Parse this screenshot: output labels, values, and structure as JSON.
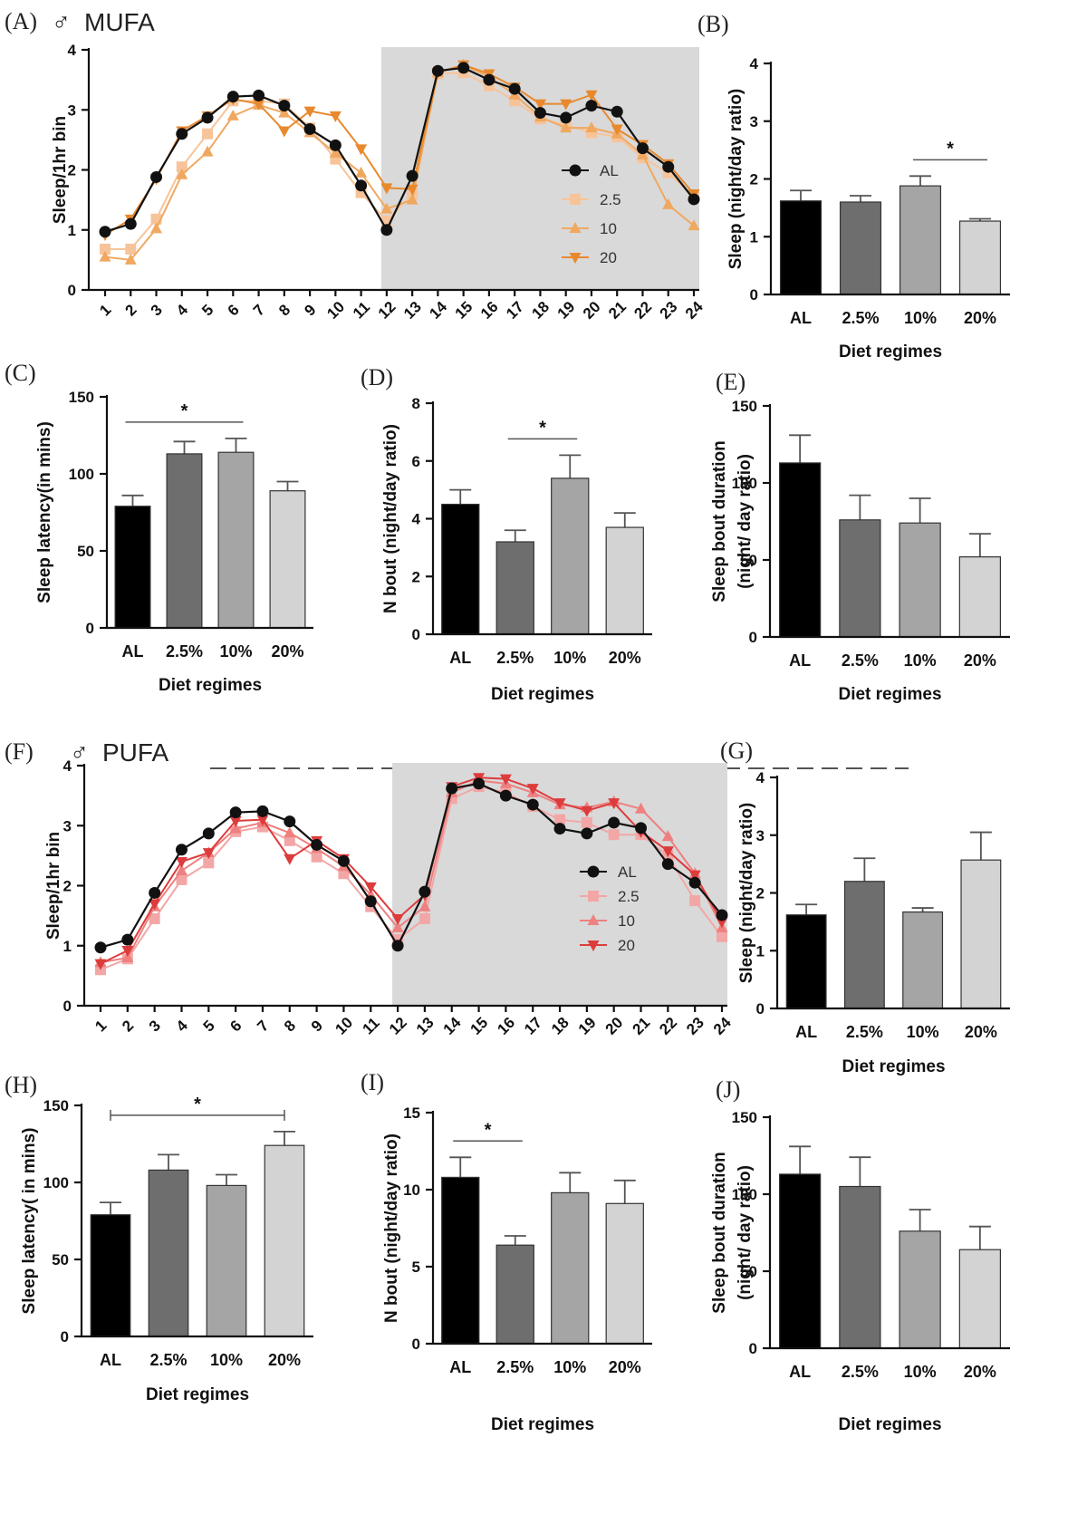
{
  "chart_data": [
    {
      "id": "A",
      "panel_label": "(A)",
      "sex_symbol": "♂",
      "title": "MUFA",
      "type": "line",
      "x": [
        1,
        2,
        3,
        4,
        5,
        6,
        7,
        8,
        9,
        10,
        11,
        12,
        13,
        14,
        15,
        16,
        17,
        18,
        19,
        20,
        21,
        22,
        23,
        24
      ],
      "ylabel": "Sleep/1hr bin",
      "xlabel": "",
      "ylim": [
        0,
        4
      ],
      "yticks": [
        0,
        1,
        2,
        3,
        4
      ],
      "shaded_x_range": [
        12,
        24
      ],
      "series": [
        {
          "name": "AL",
          "color": "#111111",
          "marker": "circle",
          "values": [
            0.97,
            1.1,
            1.88,
            2.6,
            2.87,
            3.22,
            3.24,
            3.07,
            2.68,
            2.41,
            1.74,
            1.0,
            1.9,
            3.65,
            3.7,
            3.5,
            3.35,
            2.95,
            2.87,
            3.07,
            2.97,
            2.36,
            2.05,
            1.51
          ]
        },
        {
          "name": "2.5",
          "color": "#f7c49a",
          "marker": "square",
          "values": [
            0.68,
            0.68,
            1.18,
            2.05,
            2.6,
            3.15,
            3.15,
            3.1,
            2.7,
            2.18,
            1.62,
            1.15,
            1.6,
            3.6,
            3.62,
            3.4,
            3.15,
            2.85,
            2.75,
            2.62,
            2.55,
            2.2,
            1.95,
            1.55
          ]
        },
        {
          "name": "10",
          "color": "#f0a860",
          "marker": "triangle-up",
          "values": [
            0.55,
            0.5,
            1.02,
            1.92,
            2.3,
            2.9,
            3.08,
            2.95,
            2.62,
            2.28,
            1.95,
            1.35,
            1.5,
            3.62,
            3.75,
            3.55,
            3.25,
            2.88,
            2.7,
            2.7,
            2.6,
            2.25,
            1.42,
            1.07
          ]
        },
        {
          "name": "20",
          "color": "#e8892e",
          "marker": "triangle-down",
          "values": [
            0.92,
            1.18,
            1.85,
            2.65,
            2.9,
            3.18,
            3.1,
            2.65,
            2.98,
            2.9,
            2.35,
            1.7,
            1.68,
            3.62,
            3.75,
            3.6,
            3.38,
            3.1,
            3.1,
            3.25,
            2.68,
            2.42,
            2.1,
            1.6
          ]
        }
      ],
      "legend_position": "right-center"
    },
    {
      "id": "B",
      "panel_label": "(B)",
      "type": "bar",
      "categories": [
        "AL",
        "2.5%",
        "10%",
        "20%"
      ],
      "values": [
        1.62,
        1.6,
        1.88,
        1.27
      ],
      "errors": [
        0.18,
        0.11,
        0.17,
        0.04
      ],
      "colors": [
        "#000000",
        "#6e6e6e",
        "#a5a5a5",
        "#d3d3d3"
      ],
      "ylabel": "Sleep (night/day ratio)",
      "xlabel": "Diet regimes",
      "ylim": [
        0,
        4
      ],
      "yticks": [
        0,
        1,
        2,
        3,
        4
      ],
      "significance": [
        {
          "from": 2,
          "to": 3,
          "label": "*"
        }
      ]
    },
    {
      "id": "C",
      "panel_label": "(C)",
      "type": "bar",
      "categories": [
        "AL",
        "2.5%",
        "10%",
        "20%"
      ],
      "values": [
        79,
        113,
        114,
        89
      ],
      "errors": [
        7,
        8,
        9,
        6
      ],
      "colors": [
        "#000000",
        "#6e6e6e",
        "#a5a5a5",
        "#d3d3d3"
      ],
      "ylabel": "Sleep latency(in mins)",
      "xlabel": "Diet regimes",
      "ylim": [
        0,
        150
      ],
      "yticks": [
        0,
        50,
        100,
        150
      ],
      "significance": [
        {
          "from": 0,
          "to": 2,
          "label": "*"
        }
      ]
    },
    {
      "id": "D",
      "panel_label": "(D)",
      "type": "bar",
      "categories": [
        "AL",
        "2.5%",
        "10%",
        "20%"
      ],
      "values": [
        4.5,
        3.2,
        5.4,
        3.7
      ],
      "errors": [
        0.5,
        0.4,
        0.8,
        0.5
      ],
      "colors": [
        "#000000",
        "#6e6e6e",
        "#a5a5a5",
        "#d3d3d3"
      ],
      "ylabel": "N bout (night/day ratio)",
      "xlabel": "Diet regimes",
      "ylim": [
        0,
        8
      ],
      "yticks": [
        0,
        2,
        4,
        6,
        8
      ],
      "significance": [
        {
          "from": 1,
          "to": 2,
          "label": "*"
        }
      ]
    },
    {
      "id": "E",
      "panel_label": "(E)",
      "type": "bar",
      "categories": [
        "AL",
        "2.5%",
        "10%",
        "20%"
      ],
      "values": [
        113,
        76,
        74,
        52
      ],
      "errors": [
        18,
        16,
        16,
        15
      ],
      "colors": [
        "#000000",
        "#6e6e6e",
        "#a5a5a5",
        "#d3d3d3"
      ],
      "ylabel": [
        "Sleep bout duration",
        "(night/ day ratio)"
      ],
      "xlabel": "Diet regimes",
      "ylim": [
        0,
        150
      ],
      "yticks": [
        0,
        50,
        100,
        150
      ],
      "significance": []
    },
    {
      "id": "F",
      "panel_label": "(F)",
      "sex_symbol": "♂",
      "title": "PUFA",
      "type": "line",
      "x": [
        1,
        2,
        3,
        4,
        5,
        6,
        7,
        8,
        9,
        10,
        11,
        12,
        13,
        14,
        15,
        16,
        17,
        18,
        19,
        20,
        21,
        22,
        23,
        24
      ],
      "ylabel": "Sleep/1hr bin",
      "xlabel": "",
      "ylim": [
        0,
        4
      ],
      "yticks": [
        0,
        1,
        2,
        3,
        4
      ],
      "shaded_x_range": [
        12,
        24
      ],
      "series": [
        {
          "name": "AL",
          "color": "#111111",
          "marker": "circle",
          "values": [
            0.97,
            1.1,
            1.88,
            2.6,
            2.87,
            3.22,
            3.24,
            3.07,
            2.68,
            2.41,
            1.74,
            1.0,
            1.9,
            3.62,
            3.7,
            3.5,
            3.35,
            2.95,
            2.87,
            3.05,
            2.96,
            2.36,
            2.05,
            1.51
          ]
        },
        {
          "name": "2.5",
          "color": "#f3a6a6",
          "marker": "square",
          "values": [
            0.6,
            0.78,
            1.45,
            2.1,
            2.38,
            2.9,
            2.98,
            2.75,
            2.48,
            2.2,
            1.65,
            1.1,
            1.45,
            3.45,
            3.65,
            3.55,
            3.32,
            3.1,
            3.05,
            2.85,
            2.85,
            2.5,
            1.75,
            1.15
          ]
        },
        {
          "name": "10",
          "color": "#ef8080",
          "marker": "triangle-up",
          "values": [
            0.72,
            0.8,
            1.65,
            2.25,
            2.55,
            2.95,
            3.05,
            2.88,
            2.62,
            2.32,
            1.85,
            1.3,
            1.65,
            3.55,
            3.75,
            3.7,
            3.55,
            3.35,
            3.3,
            3.4,
            3.28,
            2.82,
            2.2,
            1.3
          ]
        },
        {
          "name": "20",
          "color": "#dd3c3c",
          "marker": "triangle-down",
          "values": [
            0.7,
            0.92,
            1.7,
            2.4,
            2.55,
            3.08,
            3.1,
            2.45,
            2.75,
            2.45,
            1.98,
            1.45,
            1.85,
            3.65,
            3.8,
            3.78,
            3.62,
            3.38,
            3.25,
            3.38,
            2.9,
            2.58,
            2.18,
            1.4
          ]
        }
      ],
      "legend_position": "right-bottom"
    },
    {
      "id": "G",
      "panel_label": "(G)",
      "type": "bar",
      "categories": [
        "AL",
        "2.5%",
        "10%",
        "20%"
      ],
      "values": [
        1.62,
        2.2,
        1.67,
        2.57
      ],
      "errors": [
        0.18,
        0.4,
        0.07,
        0.48
      ],
      "colors": [
        "#000000",
        "#6e6e6e",
        "#a5a5a5",
        "#d3d3d3"
      ],
      "ylabel": "Sleep (night/day ratio)",
      "xlabel": "Diet regimes",
      "ylim": [
        0,
        4
      ],
      "yticks": [
        0,
        1,
        2,
        3,
        4
      ],
      "significance": []
    },
    {
      "id": "H",
      "panel_label": "(H)",
      "type": "bar",
      "categories": [
        "AL",
        "2.5%",
        "10%",
        "20%"
      ],
      "values": [
        79,
        108,
        98,
        124
      ],
      "errors": [
        8,
        10,
        7,
        9
      ],
      "colors": [
        "#000000",
        "#6e6e6e",
        "#a5a5a5",
        "#d3d3d3"
      ],
      "ylabel": "Sleep latency( in mins)",
      "xlabel": "Diet regimes",
      "ylim": [
        0,
        150
      ],
      "yticks": [
        0,
        50,
        100,
        150
      ],
      "significance": [
        {
          "from": 0,
          "to": 3,
          "label": "*",
          "capped": true
        }
      ]
    },
    {
      "id": "I",
      "panel_label": "(I)",
      "type": "bar",
      "categories": [
        "AL",
        "2.5%",
        "10%",
        "20%"
      ],
      "values": [
        10.8,
        6.4,
        9.8,
        9.1
      ],
      "errors": [
        1.3,
        0.6,
        1.3,
        1.5
      ],
      "colors": [
        "#000000",
        "#6e6e6e",
        "#a5a5a5",
        "#d3d3d3"
      ],
      "ylabel": "N bout (night/day ratio)",
      "xlabel": "Diet regimes",
      "ylim": [
        0,
        15
      ],
      "yticks": [
        0,
        5,
        10,
        15
      ],
      "significance": [
        {
          "from": 0,
          "to": 1,
          "label": "*"
        }
      ]
    },
    {
      "id": "J",
      "panel_label": "(J)",
      "type": "bar",
      "categories": [
        "AL",
        "2.5%",
        "10%",
        "20%"
      ],
      "values": [
        113,
        105,
        76,
        64
      ],
      "errors": [
        18,
        19,
        14,
        15
      ],
      "colors": [
        "#000000",
        "#6e6e6e",
        "#a5a5a5",
        "#d3d3d3"
      ],
      "ylabel": [
        "Sleep bout duration",
        "(night/ day ratio)"
      ],
      "xlabel": "Diet regimes",
      "ylim": [
        0,
        150
      ],
      "yticks": [
        0,
        50,
        100,
        150
      ],
      "significance": []
    }
  ]
}
